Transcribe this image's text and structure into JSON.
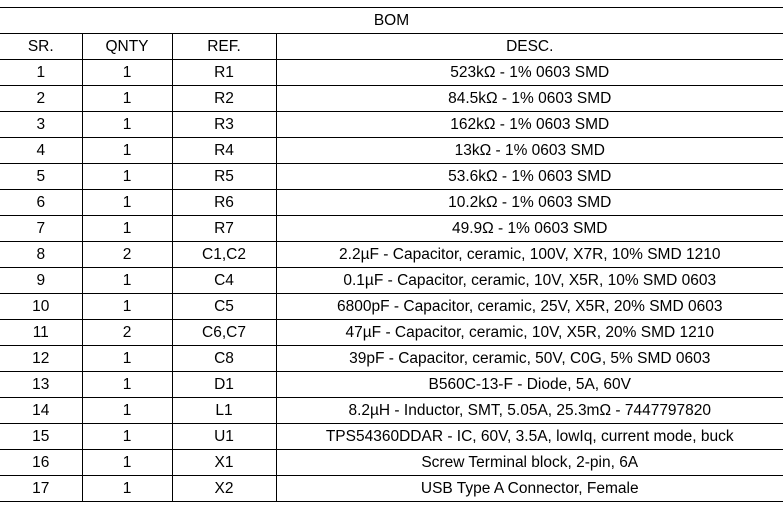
{
  "title": "BOM",
  "columns": [
    "SR.",
    "QNTY",
    "REF.",
    "DESC."
  ],
  "rows": [
    {
      "sr": "1",
      "qnty": "1",
      "ref": "R1",
      "desc": "523kΩ - 1% 0603 SMD"
    },
    {
      "sr": "2",
      "qnty": "1",
      "ref": "R2",
      "desc": "84.5kΩ - 1% 0603 SMD"
    },
    {
      "sr": "3",
      "qnty": "1",
      "ref": "R3",
      "desc": "162kΩ - 1% 0603 SMD"
    },
    {
      "sr": "4",
      "qnty": "1",
      "ref": "R4",
      "desc": "13kΩ - 1% 0603 SMD"
    },
    {
      "sr": "5",
      "qnty": "1",
      "ref": "R5",
      "desc": "53.6kΩ - 1% 0603 SMD"
    },
    {
      "sr": "6",
      "qnty": "1",
      "ref": "R6",
      "desc": "10.2kΩ - 1% 0603 SMD"
    },
    {
      "sr": "7",
      "qnty": "1",
      "ref": "R7",
      "desc": "49.9Ω - 1% 0603 SMD"
    },
    {
      "sr": "8",
      "qnty": "2",
      "ref": "C1,C2",
      "desc": "2.2µF - Capacitor, ceramic, 100V, X7R, 10% SMD 1210"
    },
    {
      "sr": "9",
      "qnty": "1",
      "ref": "C4",
      "desc": "0.1µF - Capacitor, ceramic, 10V, X5R, 10% SMD 0603"
    },
    {
      "sr": "10",
      "qnty": "1",
      "ref": "C5",
      "desc": "6800pF - Capacitor, ceramic, 25V, X5R, 20% SMD 0603"
    },
    {
      "sr": "11",
      "qnty": "2",
      "ref": "C6,C7",
      "desc": "47µF - Capacitor, ceramic, 10V, X5R, 20% SMD 1210"
    },
    {
      "sr": "12",
      "qnty": "1",
      "ref": "C8",
      "desc": "39pF - Capacitor, ceramic, 50V, C0G, 5%  SMD 0603"
    },
    {
      "sr": "13",
      "qnty": "1",
      "ref": "D1",
      "desc": "B560C-13-F - Diode, 5A, 60V"
    },
    {
      "sr": "14",
      "qnty": "1",
      "ref": "L1",
      "desc": "8.2µH - Inductor, SMT, 5.05A, 25.3mΩ - 7447797820"
    },
    {
      "sr": "15",
      "qnty": "1",
      "ref": "U1",
      "desc": "TPS54360DDAR - IC, 60V, 3.5A, lowIq, current mode, buck"
    },
    {
      "sr": "16",
      "qnty": "1",
      "ref": "X1",
      "desc": "Screw Terminal block, 2-pin, 6A"
    },
    {
      "sr": "17",
      "qnty": "1",
      "ref": "X2",
      "desc": "USB Type A Connector, Female"
    }
  ]
}
